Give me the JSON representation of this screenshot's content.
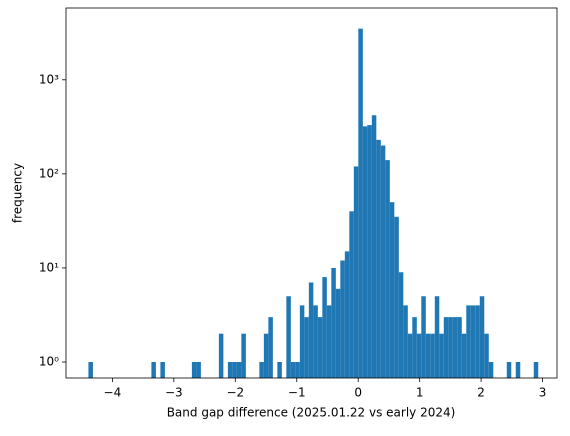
{
  "chart_data": {
    "type": "histogram",
    "x_label": "Band gap difference (2025.01.22 vs early 2024)",
    "y_label": "frequency",
    "color": "#1f77b4",
    "log_y": true,
    "bins": [
      -4.39,
      -4.3168,
      -4.2436,
      -4.1704,
      -4.0972,
      -4.024,
      -3.9508,
      -3.8776,
      -3.8044,
      -3.7312,
      -3.658,
      -3.5848,
      -3.5116,
      -3.4384,
      -3.3652,
      -3.292,
      -3.2188,
      -3.1456,
      -3.0724,
      -2.9992,
      -2.926,
      -2.8528,
      -2.7796,
      -2.7064,
      -2.6332,
      -2.56,
      -2.4868,
      -2.4136,
      -2.3404,
      -2.2672,
      -2.194,
      -2.1208,
      -2.0476,
      -1.9744,
      -1.9012,
      -1.828,
      -1.7548,
      -1.6816,
      -1.6084,
      -1.5352,
      -1.462,
      -1.3888,
      -1.3156,
      -1.2424,
      -1.1692,
      -1.096,
      -1.0228,
      -0.9496,
      -0.8764,
      -0.8032,
      -0.73,
      -0.6568,
      -0.5836,
      -0.5104,
      -0.4372,
      -0.364,
      -0.2908,
      -0.2176,
      -0.1444,
      -0.0712,
      0.002,
      0.0752,
      0.1484,
      0.2216,
      0.2948,
      0.368,
      0.4412,
      0.5144,
      0.5876,
      0.6608,
      0.734,
      0.8072,
      0.8804,
      0.9536,
      1.0268,
      1.1,
      1.1732,
      1.2464,
      1.3196,
      1.3928,
      1.466,
      1.5392,
      1.6124,
      1.6856,
      1.7588,
      1.832,
      1.9052,
      1.9784,
      2.0516,
      2.1248,
      2.198,
      2.2712,
      2.3444,
      2.4176,
      2.4908,
      2.564,
      2.6372,
      2.7104,
      2.7836,
      2.8568,
      2.93
    ],
    "values": [
      1,
      0,
      0,
      0,
      0,
      0,
      0,
      0,
      0,
      0,
      0,
      0,
      0,
      0,
      1,
      0,
      1,
      0,
      0,
      0,
      0,
      0,
      0,
      1,
      1,
      0,
      0,
      0,
      0,
      2,
      0,
      1,
      1,
      1,
      2,
      0,
      0,
      0,
      1,
      2,
      3,
      0,
      1,
      0,
      5,
      1,
      1,
      4,
      3,
      7,
      4,
      3,
      8,
      4,
      10,
      6,
      12,
      15,
      40,
      120,
      3500,
      320,
      330,
      420,
      230,
      200,
      140,
      50,
      35,
      9,
      4,
      2,
      3,
      2,
      5,
      2,
      2,
      5,
      2,
      3,
      3,
      3,
      3,
      2,
      4,
      4,
      4,
      5,
      2,
      1,
      0,
      0,
      0,
      1,
      0,
      1,
      0,
      0,
      0,
      1
    ],
    "xlim": [
      -4.755,
      3.235
    ],
    "ylim": [
      0.676,
      5800
    ],
    "xticks": [
      {
        "value": -4,
        "label": "−4"
      },
      {
        "value": -3,
        "label": "−3"
      },
      {
        "value": -2,
        "label": "−2"
      },
      {
        "value": -1,
        "label": "−1"
      },
      0,
      1,
      2,
      3
    ],
    "yticks": [
      {
        "value": 1,
        "label": "10⁰"
      },
      {
        "value": 10,
        "label": "10¹"
      },
      {
        "value": 100,
        "label": "10²"
      },
      {
        "value": 1000,
        "label": "10³"
      }
    ]
  }
}
